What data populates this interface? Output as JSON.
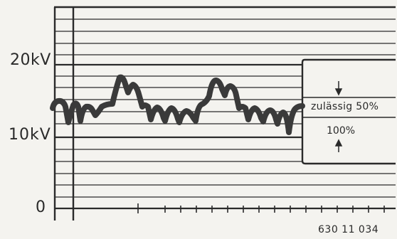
{
  "axis_labels": {
    "upper": "20kV",
    "middle": "10kV",
    "zero": "0"
  },
  "tolerance_box": {
    "upper_label": "zulässig 50%",
    "lower_label": "100%"
  },
  "figure_number": "630 11 034",
  "colors": {
    "ink": "#2a2a2a",
    "paper": "#f4f3ef",
    "waveform": "#3a3a3a"
  }
}
